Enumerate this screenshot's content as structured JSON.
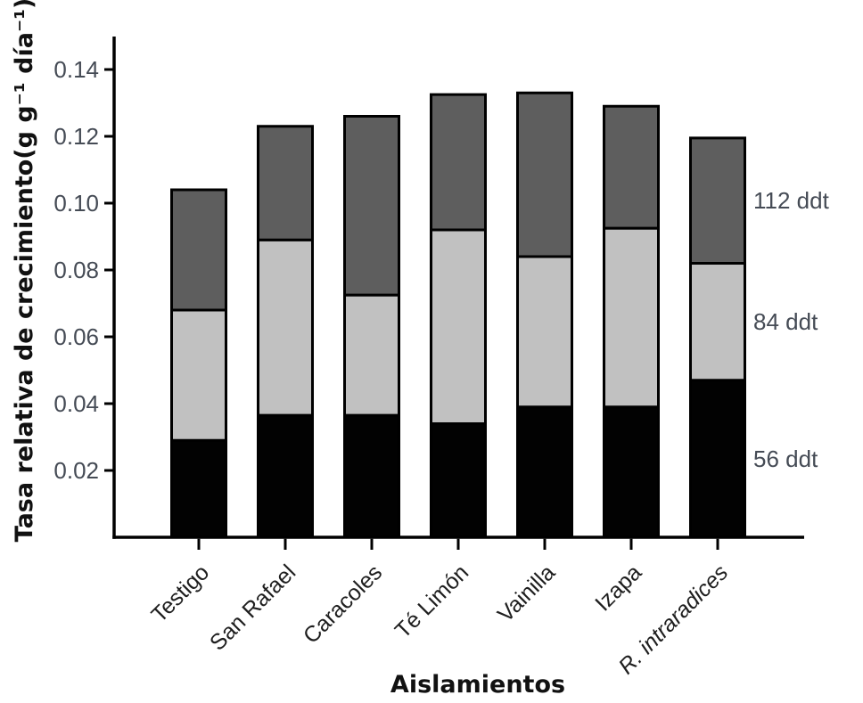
{
  "chart_data": {
    "type": "bar",
    "stacked": true,
    "orientation": "vertical",
    "title": "",
    "xlabel": "Aislamientos",
    "ylabel": "Tasa relativa de crecimiento(g g⁻¹ día⁻¹)",
    "categories": [
      "Testigo",
      "San Rafael",
      "Caracoles",
      "Té Limón",
      "Vainilla",
      "Izapa",
      "R. intraradices"
    ],
    "italic_categories": [
      "R. intraradices"
    ],
    "series": [
      {
        "name": "56 ddt",
        "color": "#020202",
        "values": [
          0.029,
          0.0365,
          0.0365,
          0.034,
          0.039,
          0.039,
          0.047
        ]
      },
      {
        "name": "84 ddt",
        "color": "#c1c1c1",
        "values": [
          0.039,
          0.0525,
          0.036,
          0.058,
          0.045,
          0.0535,
          0.035
        ]
      },
      {
        "name": "112 ddt",
        "color": "#5e5e5e",
        "values": [
          0.036,
          0.034,
          0.0535,
          0.0405,
          0.049,
          0.0365,
          0.0375
        ]
      }
    ],
    "stack_totals": [
      0.104,
      0.123,
      0.126,
      0.1325,
      0.133,
      0.129,
      0.1195
    ],
    "ylim": [
      0,
      0.15
    ],
    "yticks": [
      0.02,
      0.04,
      0.06,
      0.08,
      0.1,
      0.12,
      0.14
    ],
    "ytick_labels": [
      "0.02",
      "0.04",
      "0.06",
      "0.08",
      "0.10",
      "0.12",
      "0.14"
    ],
    "grid": false,
    "bar_border_color": "#000000",
    "axis_color": "#000000",
    "legend_position": "right-inline-labels",
    "legend_entries": [
      "112 ddt",
      "84 ddt",
      "56 ddt"
    ]
  }
}
